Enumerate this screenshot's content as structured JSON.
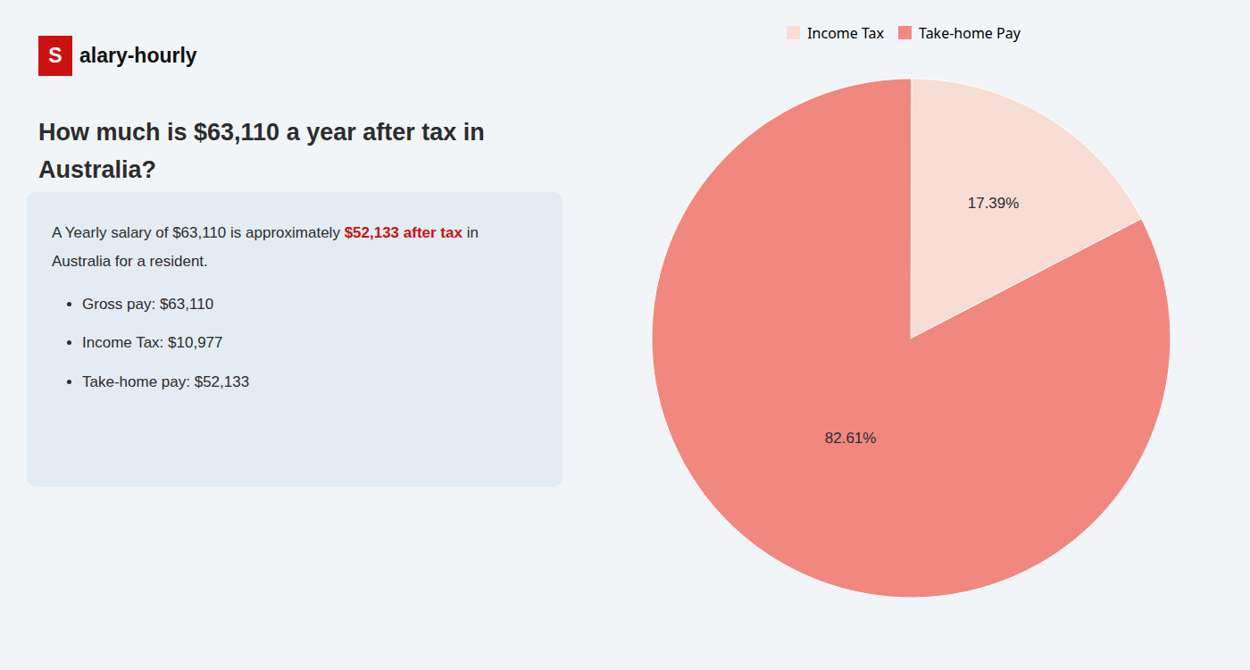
{
  "chart_data": {
    "type": "pie",
    "title": "How much is $63,110 a year after tax in Australia?",
    "categories": [
      "Income Tax",
      "Take-home Pay"
    ],
    "values": [
      17.39,
      82.61
    ],
    "value_labels": [
      "17.39%",
      "82.61%"
    ],
    "data_labels": true,
    "colors": [
      "#f8ddd4",
      "#f08880"
    ],
    "legend": "top",
    "annotations": [
      {
        "text": "S",
        "color": "#cc1111"
      },
      {
        "text": "alary-hourly"
      },
      {
        "text": "A Yearly salary of $63,110 is approximately"
      },
      {
        "text": "$52,133 after tax",
        "color": "#cc1111"
      },
      {
        "text": "in"
      },
      {
        "text": "Australia for a resident."
      },
      {
        "text": "Gross pay: $63,110"
      },
      {
        "text": "Income Tax: $10,977"
      },
      {
        "text": "Take-home pay: $52,133"
      }
    ]
  }
}
